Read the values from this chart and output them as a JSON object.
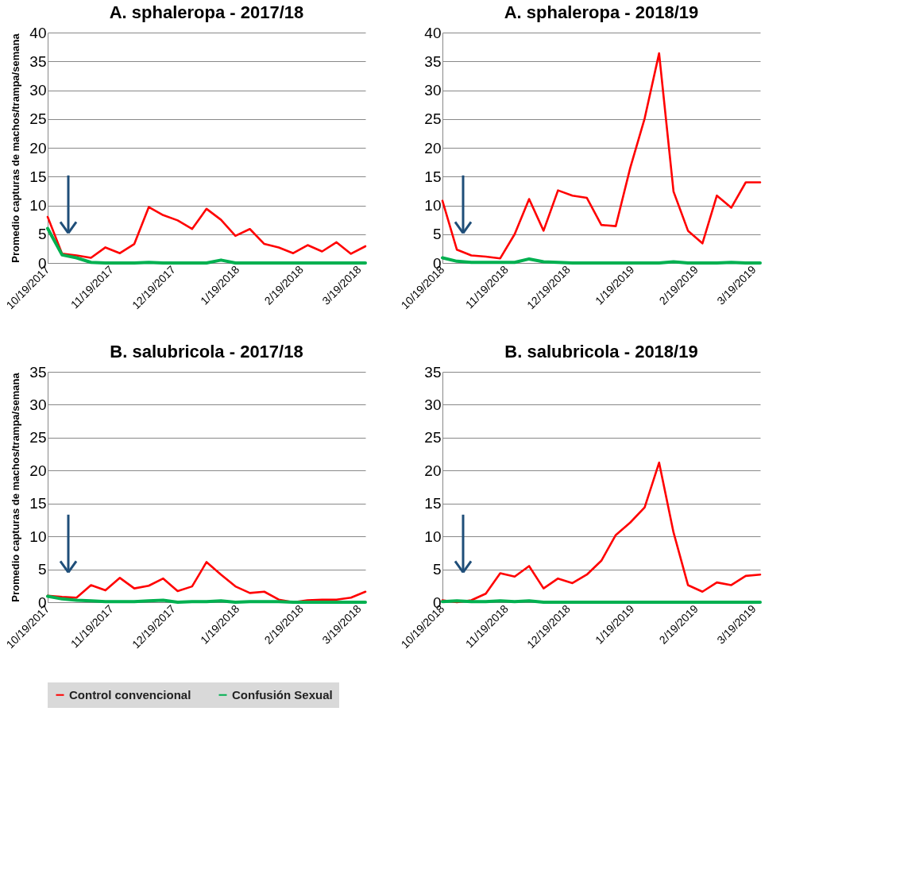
{
  "chart_data": [
    {
      "type": "line",
      "title": "A. sphaleropa - 2017/18",
      "ylabel": "Promedio capturas de machos/trampa/semana",
      "x": [
        "2017-10-19",
        "2017-10-26",
        "2017-11-02",
        "2017-11-09",
        "2017-11-16",
        "2017-11-23",
        "2017-11-30",
        "2017-12-07",
        "2017-12-14",
        "2017-12-21",
        "2017-12-28",
        "2018-01-04",
        "2018-01-11",
        "2018-01-18",
        "2018-01-25",
        "2018-02-01",
        "2018-02-08",
        "2018-02-15",
        "2018-02-22",
        "2018-03-01",
        "2018-03-08",
        "2018-03-15",
        "2018-03-22"
      ],
      "series": [
        {
          "name": "Control convencional",
          "color": "#ff0000",
          "values": [
            8.0,
            1.6,
            1.3,
            0.9,
            2.7,
            1.7,
            3.3,
            9.7,
            8.3,
            7.4,
            5.9,
            9.4,
            7.5,
            4.7,
            5.9,
            3.3,
            2.7,
            1.7,
            3.1,
            2.0,
            3.6,
            1.6,
            2.9
          ]
        },
        {
          "name": "Confusión Sexual",
          "color": "#00b050",
          "values": [
            6.0,
            1.4,
            0.9,
            0.1,
            0,
            0,
            0,
            0.1,
            0,
            0,
            0,
            0,
            0.5,
            0,
            0,
            0,
            0,
            0,
            0,
            0,
            0,
            0,
            0
          ]
        }
      ],
      "xlim": [
        "2017-10-19",
        "2018-03-22"
      ],
      "xticks": [
        {
          "value": "2017-10-19",
          "label": "10/19/2017"
        },
        {
          "value": "2017-11-19",
          "label": "11/19/2017"
        },
        {
          "value": "2017-12-19",
          "label": "12/19/2017"
        },
        {
          "value": "2018-01-19",
          "label": "1/19/2018"
        },
        {
          "value": "2018-02-19",
          "label": "2/19/2018"
        },
        {
          "value": "2018-03-19",
          "label": "3/19/2018"
        }
      ],
      "ylim": [
        0,
        40
      ],
      "yticks": [
        0,
        5,
        10,
        15,
        20,
        25,
        30,
        35,
        40
      ],
      "grid": "y",
      "legend": "bottom",
      "marker": "none"
    },
    {
      "type": "line",
      "title": "A. sphaleropa - 2018/19",
      "x": [
        "2018-10-19",
        "2018-10-26",
        "2018-11-02",
        "2018-11-09",
        "2018-11-16",
        "2018-11-23",
        "2018-11-30",
        "2018-12-07",
        "2018-12-14",
        "2018-12-21",
        "2018-12-28",
        "2019-01-04",
        "2019-01-11",
        "2019-01-18",
        "2019-01-25",
        "2019-02-01",
        "2019-02-08",
        "2019-02-15",
        "2019-02-22",
        "2019-03-01",
        "2019-03-08",
        "2019-03-15",
        "2019-03-22"
      ],
      "series": [
        {
          "name": "Control convencional",
          "color": "#ff0000",
          "values": [
            10.8,
            2.3,
            1.3,
            1.1,
            0.8,
            5.0,
            11.1,
            5.6,
            12.6,
            11.7,
            11.3,
            6.6,
            6.4,
            16.5,
            25.1,
            36.4,
            12.4,
            5.6,
            3.4,
            11.7,
            9.6,
            14.0,
            14.0
          ]
        },
        {
          "name": "Confusión Sexual",
          "color": "#00b050",
          "values": [
            0.9,
            0.3,
            0.1,
            0.1,
            0.1,
            0.1,
            0.7,
            0.2,
            0.1,
            0,
            0,
            0,
            0,
            0,
            0,
            0,
            0.2,
            0,
            0,
            0,
            0.1,
            0,
            0
          ]
        }
      ],
      "xlim": [
        "2018-10-19",
        "2019-03-22"
      ],
      "xticks": [
        {
          "value": "2018-10-19",
          "label": "10/19/2018"
        },
        {
          "value": "2018-11-19",
          "label": "11/19/2018"
        },
        {
          "value": "2018-12-19",
          "label": "12/19/2018"
        },
        {
          "value": "2019-01-19",
          "label": "1/19/2019"
        },
        {
          "value": "2019-02-19",
          "label": "2/19/2019"
        },
        {
          "value": "2019-03-19",
          "label": "3/19/2019"
        }
      ],
      "ylim": [
        0,
        40
      ],
      "yticks": [
        0,
        5,
        10,
        15,
        20,
        25,
        30,
        35,
        40
      ],
      "grid": "y",
      "legend": "bottom",
      "marker": "none"
    },
    {
      "type": "line",
      "title": "B. salubricola - 2017/18",
      "ylabel": "Promedio capturas de machos/trampa/semana",
      "x": [
        "2017-10-19",
        "2017-10-26",
        "2017-11-02",
        "2017-11-09",
        "2017-11-16",
        "2017-11-23",
        "2017-11-30",
        "2017-12-07",
        "2017-12-14",
        "2017-12-21",
        "2017-12-28",
        "2018-01-04",
        "2018-01-11",
        "2018-01-18",
        "2018-01-25",
        "2018-02-01",
        "2018-02-08",
        "2018-02-15",
        "2018-02-22",
        "2018-03-01",
        "2018-03-08",
        "2018-03-15",
        "2018-03-22"
      ],
      "series": [
        {
          "name": "Control convencional",
          "color": "#ff0000",
          "values": [
            1.0,
            0.8,
            0.7,
            2.6,
            1.8,
            3.7,
            2.1,
            2.5,
            3.6,
            1.7,
            2.4,
            6.1,
            4.2,
            2.4,
            1.4,
            1.6,
            0.4,
            0.0,
            0.3,
            0.4,
            0.4,
            0.7,
            1.6
          ]
        },
        {
          "name": "Confusión Sexual",
          "color": "#00b050",
          "values": [
            0.9,
            0.5,
            0.3,
            0.2,
            0.1,
            0.1,
            0.1,
            0.2,
            0.3,
            0,
            0.1,
            0.1,
            0.2,
            0,
            0.1,
            0.1,
            0.1,
            0,
            0,
            0,
            0,
            0,
            0
          ]
        }
      ],
      "xlim": [
        "2017-10-19",
        "2018-03-22"
      ],
      "xticks": [
        {
          "value": "2017-10-19",
          "label": "10/19/2017"
        },
        {
          "value": "2017-11-19",
          "label": "11/19/2017"
        },
        {
          "value": "2017-12-19",
          "label": "12/19/2017"
        },
        {
          "value": "2018-01-19",
          "label": "1/19/2018"
        },
        {
          "value": "2018-02-19",
          "label": "2/19/2018"
        },
        {
          "value": "2018-03-19",
          "label": "3/19/2018"
        }
      ],
      "ylim": [
        0,
        35
      ],
      "yticks": [
        0,
        5,
        10,
        15,
        20,
        25,
        30,
        35
      ],
      "grid": "y",
      "legend": "bottom",
      "marker": "none"
    },
    {
      "type": "line",
      "title": "B. salubricola - 2018/19",
      "x": [
        "2018-10-19",
        "2018-10-26",
        "2018-11-02",
        "2018-11-09",
        "2018-11-16",
        "2018-11-23",
        "2018-11-30",
        "2018-12-07",
        "2018-12-14",
        "2018-12-21",
        "2018-12-28",
        "2019-01-04",
        "2019-01-11",
        "2019-01-18",
        "2019-01-25",
        "2019-02-01",
        "2019-02-08",
        "2019-02-15",
        "2019-02-22",
        "2019-03-01",
        "2019-03-08",
        "2019-03-15",
        "2019-03-22"
      ],
      "series": [
        {
          "name": "Control convencional",
          "color": "#ff0000",
          "values": [
            0.3,
            0,
            0.3,
            1.3,
            4.4,
            3.9,
            5.5,
            2.1,
            3.6,
            2.9,
            4.2,
            6.3,
            10.2,
            12.1,
            14.4,
            21.2,
            10.6,
            2.6,
            1.6,
            3.0,
            2.6,
            4.0,
            4.2
          ]
        },
        {
          "name": "Confusión Sexual",
          "color": "#00b050",
          "values": [
            0.1,
            0.2,
            0.1,
            0.1,
            0.2,
            0.1,
            0.2,
            0,
            0,
            0,
            0,
            0,
            0,
            0,
            0,
            0,
            0,
            0,
            0,
            0,
            0,
            0,
            0
          ]
        }
      ],
      "xlim": [
        "2018-10-19",
        "2019-03-22"
      ],
      "xticks": [
        {
          "value": "2018-10-19",
          "label": "10/19/2018"
        },
        {
          "value": "2018-11-19",
          "label": "11/19/2018"
        },
        {
          "value": "2018-12-19",
          "label": "12/19/2018"
        },
        {
          "value": "2019-01-19",
          "label": "1/19/2019"
        },
        {
          "value": "2019-02-19",
          "label": "2/19/2019"
        },
        {
          "value": "2019-03-19",
          "label": "3/19/2019"
        }
      ],
      "ylim": [
        0,
        35
      ],
      "yticks": [
        0,
        5,
        10,
        15,
        20,
        25,
        30,
        35
      ],
      "grid": "y",
      "legend": "bottom",
      "marker": "none"
    }
  ]
}
